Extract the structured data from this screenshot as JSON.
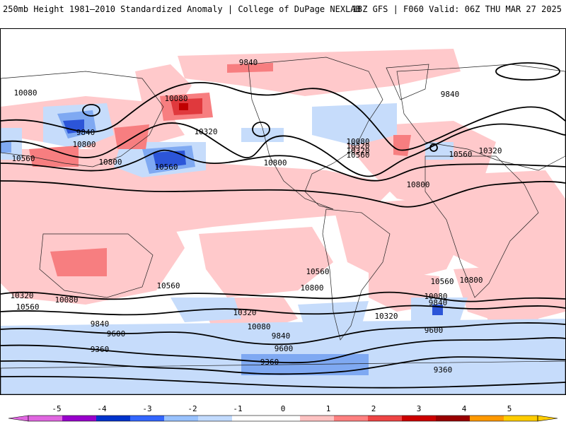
{
  "header": {
    "title": "250mb Height 1981–2010 Standardized Anomaly | College of DuPage NEXLAB",
    "run_info": "18Z GFS | F060 Valid: 06Z THU MAR 27 2025"
  },
  "map": {
    "projection": "cylindrical-global",
    "continents_outline_color": "#000000",
    "contour_color": "#000000",
    "contour_labels": [
      "9840",
      "10080",
      "10080",
      "9840",
      "10320",
      "10560",
      "10800",
      "10560",
      "10320",
      "10800",
      "10080",
      "10320",
      "10560",
      "10800",
      "9840",
      "10560",
      "10320",
      "10800",
      "10800",
      "10560",
      "10800",
      "10560",
      "10560",
      "10320",
      "10080",
      "10320",
      "9840",
      "9600",
      "10080",
      "9840",
      "9600",
      "9360",
      "9360",
      "10560",
      "10080",
      "10320",
      "9840",
      "9600",
      "9360"
    ]
  },
  "colorbar": {
    "tick_labels": [
      "-5",
      "-4",
      "-3",
      "-2",
      "-1",
      "0",
      "1",
      "2",
      "3",
      "4",
      "5"
    ],
    "colors": [
      "#e066e0",
      "#9900cc",
      "#0033cc",
      "#3366ff",
      "#99c2ff",
      "#c2dbff",
      "#ffffff",
      "#ffffff",
      "#ffc2c2",
      "#ff8080",
      "#ee4444",
      "#cc0000",
      "#990000",
      "#ff9900",
      "#ffcc00"
    ],
    "anomaly_colors": {
      "neg_light": "#c6dcfb",
      "neg_mid": "#7fa9f2",
      "neg_strong": "#2c55d8",
      "neg_extreme": "#7a1ec8",
      "pos_light": "#ffc9cb",
      "pos_mid": "#f77e80",
      "pos_strong": "#e0393d",
      "pos_extreme": "#c00000"
    }
  }
}
